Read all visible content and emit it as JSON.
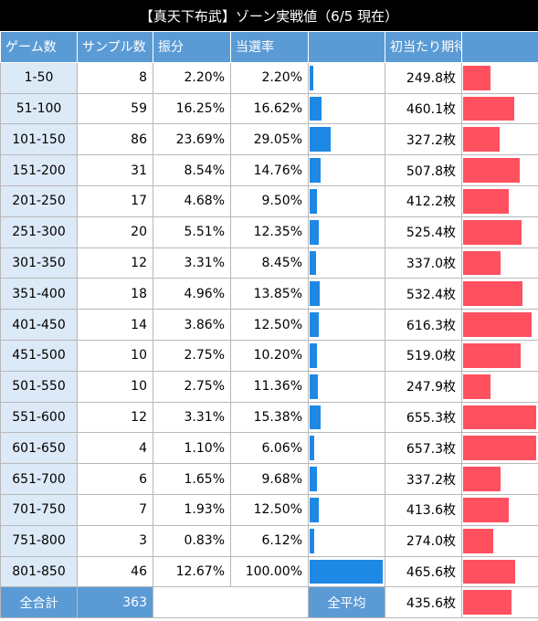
{
  "title": "【真天下布武】ゾーン実戦値（6/5 現在）",
  "headers": [
    "ゲーム数",
    "サンプル数",
    "振分",
    "当選率",
    "",
    "初当たり期待枚数",
    ""
  ],
  "colors": {
    "header": "#5b9bd5",
    "game_cell": "#dce9f7",
    "blue_bar": "#1e88e5",
    "red_bar": "#ff5060"
  },
  "rows": [
    {
      "range": "1-50",
      "samples": "8",
      "share": "2.20%",
      "rate": "2.20%",
      "rate_value": 2.2,
      "expected": "249.8枚",
      "expected_value": 249.8
    },
    {
      "range": "51-100",
      "samples": "59",
      "share": "16.25%",
      "rate": "16.62%",
      "rate_value": 16.62,
      "expected": "460.1枚",
      "expected_value": 460.1
    },
    {
      "range": "101-150",
      "samples": "86",
      "share": "23.69%",
      "rate": "29.05%",
      "rate_value": 29.05,
      "expected": "327.2枚",
      "expected_value": 327.2
    },
    {
      "range": "151-200",
      "samples": "31",
      "share": "8.54%",
      "rate": "14.76%",
      "rate_value": 14.76,
      "expected": "507.8枚",
      "expected_value": 507.8
    },
    {
      "range": "201-250",
      "samples": "17",
      "share": "4.68%",
      "rate": "9.50%",
      "rate_value": 9.5,
      "expected": "412.2枚",
      "expected_value": 412.2
    },
    {
      "range": "251-300",
      "samples": "20",
      "share": "5.51%",
      "rate": "12.35%",
      "rate_value": 12.35,
      "expected": "525.4枚",
      "expected_value": 525.4
    },
    {
      "range": "301-350",
      "samples": "12",
      "share": "3.31%",
      "rate": "8.45%",
      "rate_value": 8.45,
      "expected": "337.0枚",
      "expected_value": 337.0
    },
    {
      "range": "351-400",
      "samples": "18",
      "share": "4.96%",
      "rate": "13.85%",
      "rate_value": 13.85,
      "expected": "532.4枚",
      "expected_value": 532.4
    },
    {
      "range": "401-450",
      "samples": "14",
      "share": "3.86%",
      "rate": "12.50%",
      "rate_value": 12.5,
      "expected": "616.3枚",
      "expected_value": 616.3
    },
    {
      "range": "451-500",
      "samples": "10",
      "share": "2.75%",
      "rate": "10.20%",
      "rate_value": 10.2,
      "expected": "519.0枚",
      "expected_value": 519.0
    },
    {
      "range": "501-550",
      "samples": "10",
      "share": "2.75%",
      "rate": "11.36%",
      "rate_value": 11.36,
      "expected": "247.9枚",
      "expected_value": 247.9
    },
    {
      "range": "551-600",
      "samples": "12",
      "share": "3.31%",
      "rate": "15.38%",
      "rate_value": 15.38,
      "expected": "655.3枚",
      "expected_value": 655.3
    },
    {
      "range": "601-650",
      "samples": "4",
      "share": "1.10%",
      "rate": "6.06%",
      "rate_value": 6.06,
      "expected": "657.3枚",
      "expected_value": 657.3
    },
    {
      "range": "651-700",
      "samples": "6",
      "share": "1.65%",
      "rate": "9.68%",
      "rate_value": 9.68,
      "expected": "337.2枚",
      "expected_value": 337.2
    },
    {
      "range": "701-750",
      "samples": "7",
      "share": "1.93%",
      "rate": "12.50%",
      "rate_value": 12.5,
      "expected": "413.6枚",
      "expected_value": 413.6
    },
    {
      "range": "751-800",
      "samples": "3",
      "share": "0.83%",
      "rate": "6.12%",
      "rate_value": 6.12,
      "expected": "274.0枚",
      "expected_value": 274.0
    },
    {
      "range": "801-850",
      "samples": "46",
      "share": "12.67%",
      "rate": "100.00%",
      "rate_value": 100.0,
      "expected": "465.6枚",
      "expected_value": 465.6
    }
  ],
  "footer": {
    "total_label": "全合計",
    "total_samples": "363",
    "avg_label": "全平均",
    "avg_expected": "435.6枚",
    "avg_expected_value": 435.6
  },
  "scale": {
    "rate_max": 100,
    "expected_max": 657.3
  }
}
